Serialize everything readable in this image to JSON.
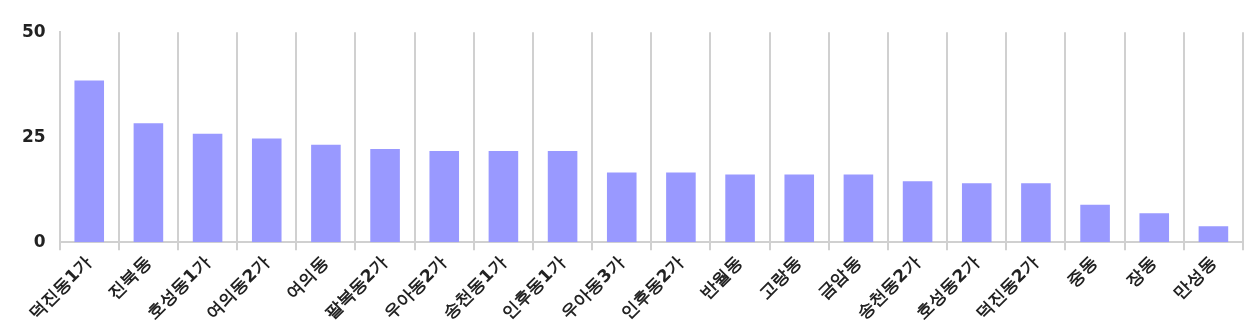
{
  "chart_data": {
    "type": "bar",
    "categories": [
      "덕진동1가",
      "진북동",
      "호성동1가",
      "여의동2가",
      "여의동",
      "팔복동2가",
      "우아동2가",
      "송천동1가",
      "인후동1가",
      "우아동3가",
      "인후동2가",
      "반월동",
      "고랑동",
      "금암동",
      "송천동2가",
      "호성동2가",
      "덕진동2가",
      "중동",
      "장동",
      "만성동"
    ],
    "values": [
      38.5,
      28.3,
      25.8,
      24.7,
      23.2,
      22.2,
      21.7,
      21.7,
      21.7,
      16.6,
      16.6,
      16.1,
      16.1,
      16.1,
      14.5,
      14.0,
      14.0,
      8.9,
      6.9,
      3.8
    ],
    "color": "#9999ff",
    "ylim": [
      0,
      50
    ],
    "yticks": [
      0,
      25,
      50
    ],
    "grid": "x"
  }
}
